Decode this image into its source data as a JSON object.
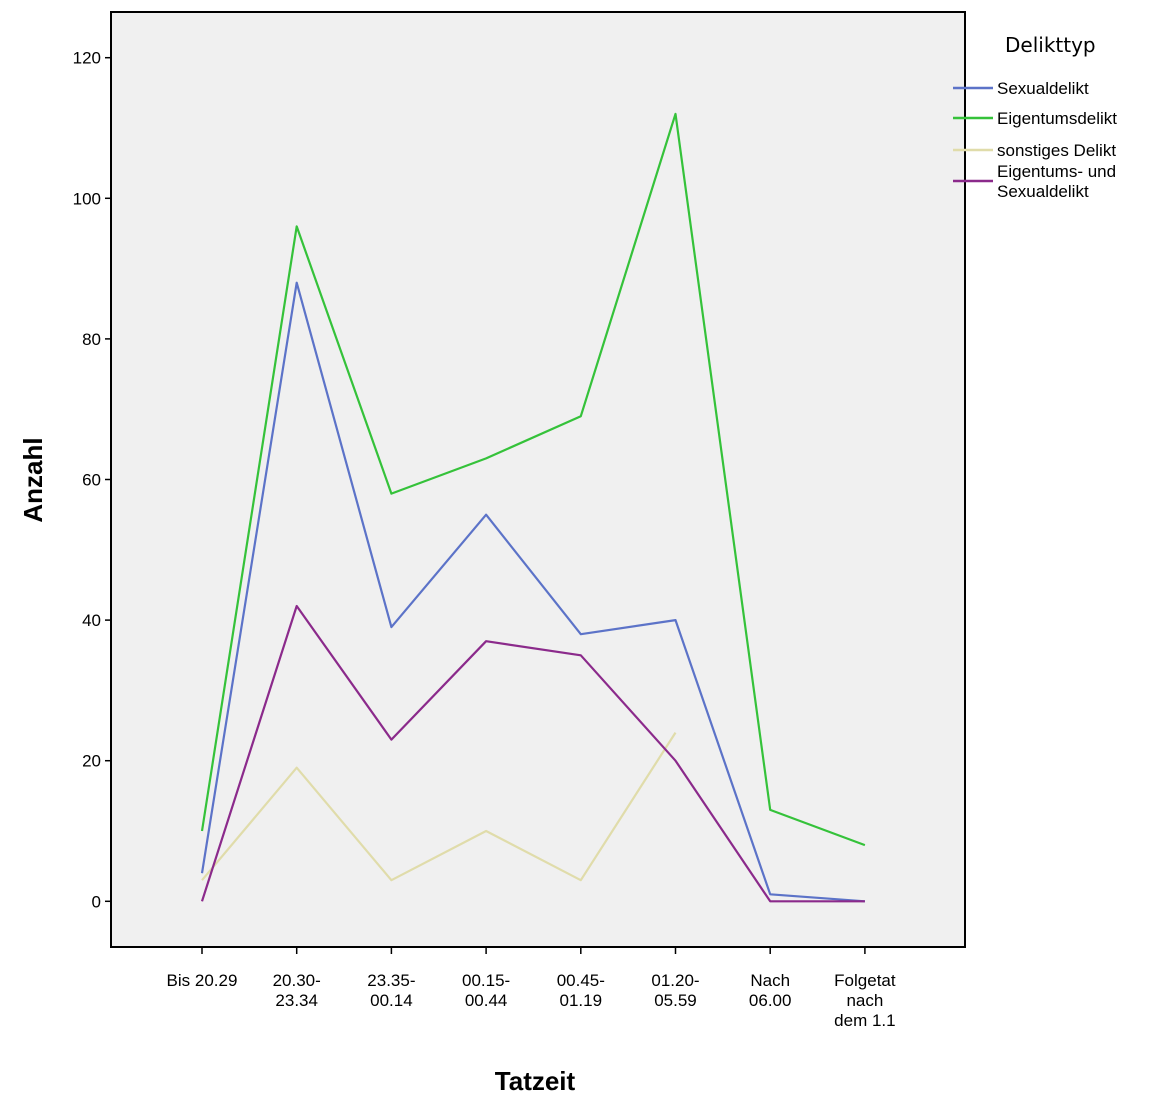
{
  "chart_data": {
    "type": "line",
    "xlabel": "Tatzeit",
    "ylabel": "Anzahl",
    "ylim": [
      -6.5,
      126.5
    ],
    "yticks": [
      0,
      20,
      40,
      60,
      80,
      100,
      120
    ],
    "grid": false,
    "legend_position": "right",
    "legend_title": "Delikttyp",
    "categories": [
      [
        "Bis 20.29"
      ],
      [
        "20.30-",
        "23.34"
      ],
      [
        "23.35-",
        "00.14"
      ],
      [
        "00.15-",
        "00.44"
      ],
      [
        "00.45-",
        "01.19"
      ],
      [
        "01.20-",
        "05.59"
      ],
      [
        "Nach",
        "06.00"
      ],
      [
        "Folgetat",
        "nach",
        "dem 1.1"
      ]
    ],
    "series": [
      {
        "name": "Sexualdelikt",
        "color": "#5c73c8",
        "values": [
          4,
          88,
          39,
          55,
          38,
          40,
          1,
          0
        ]
      },
      {
        "name": "Eigentumsdelikt",
        "color": "#35c23a",
        "values": [
          10,
          96,
          58,
          63,
          69,
          112,
          13,
          8
        ]
      },
      {
        "name": "sonstiges Delikt",
        "color": "#e0dcaa",
        "values": [
          3,
          19,
          3,
          10,
          3,
          24,
          null,
          null
        ]
      },
      {
        "name": [
          "Eigentums- und",
          "Sexualdelikt"
        ],
        "color": "#8b2a8b",
        "values": [
          0,
          42,
          23,
          37,
          35,
          20,
          0,
          0
        ]
      }
    ],
    "colors": {
      "plot_background": "#f0f0f0",
      "axis": "#000000"
    }
  }
}
